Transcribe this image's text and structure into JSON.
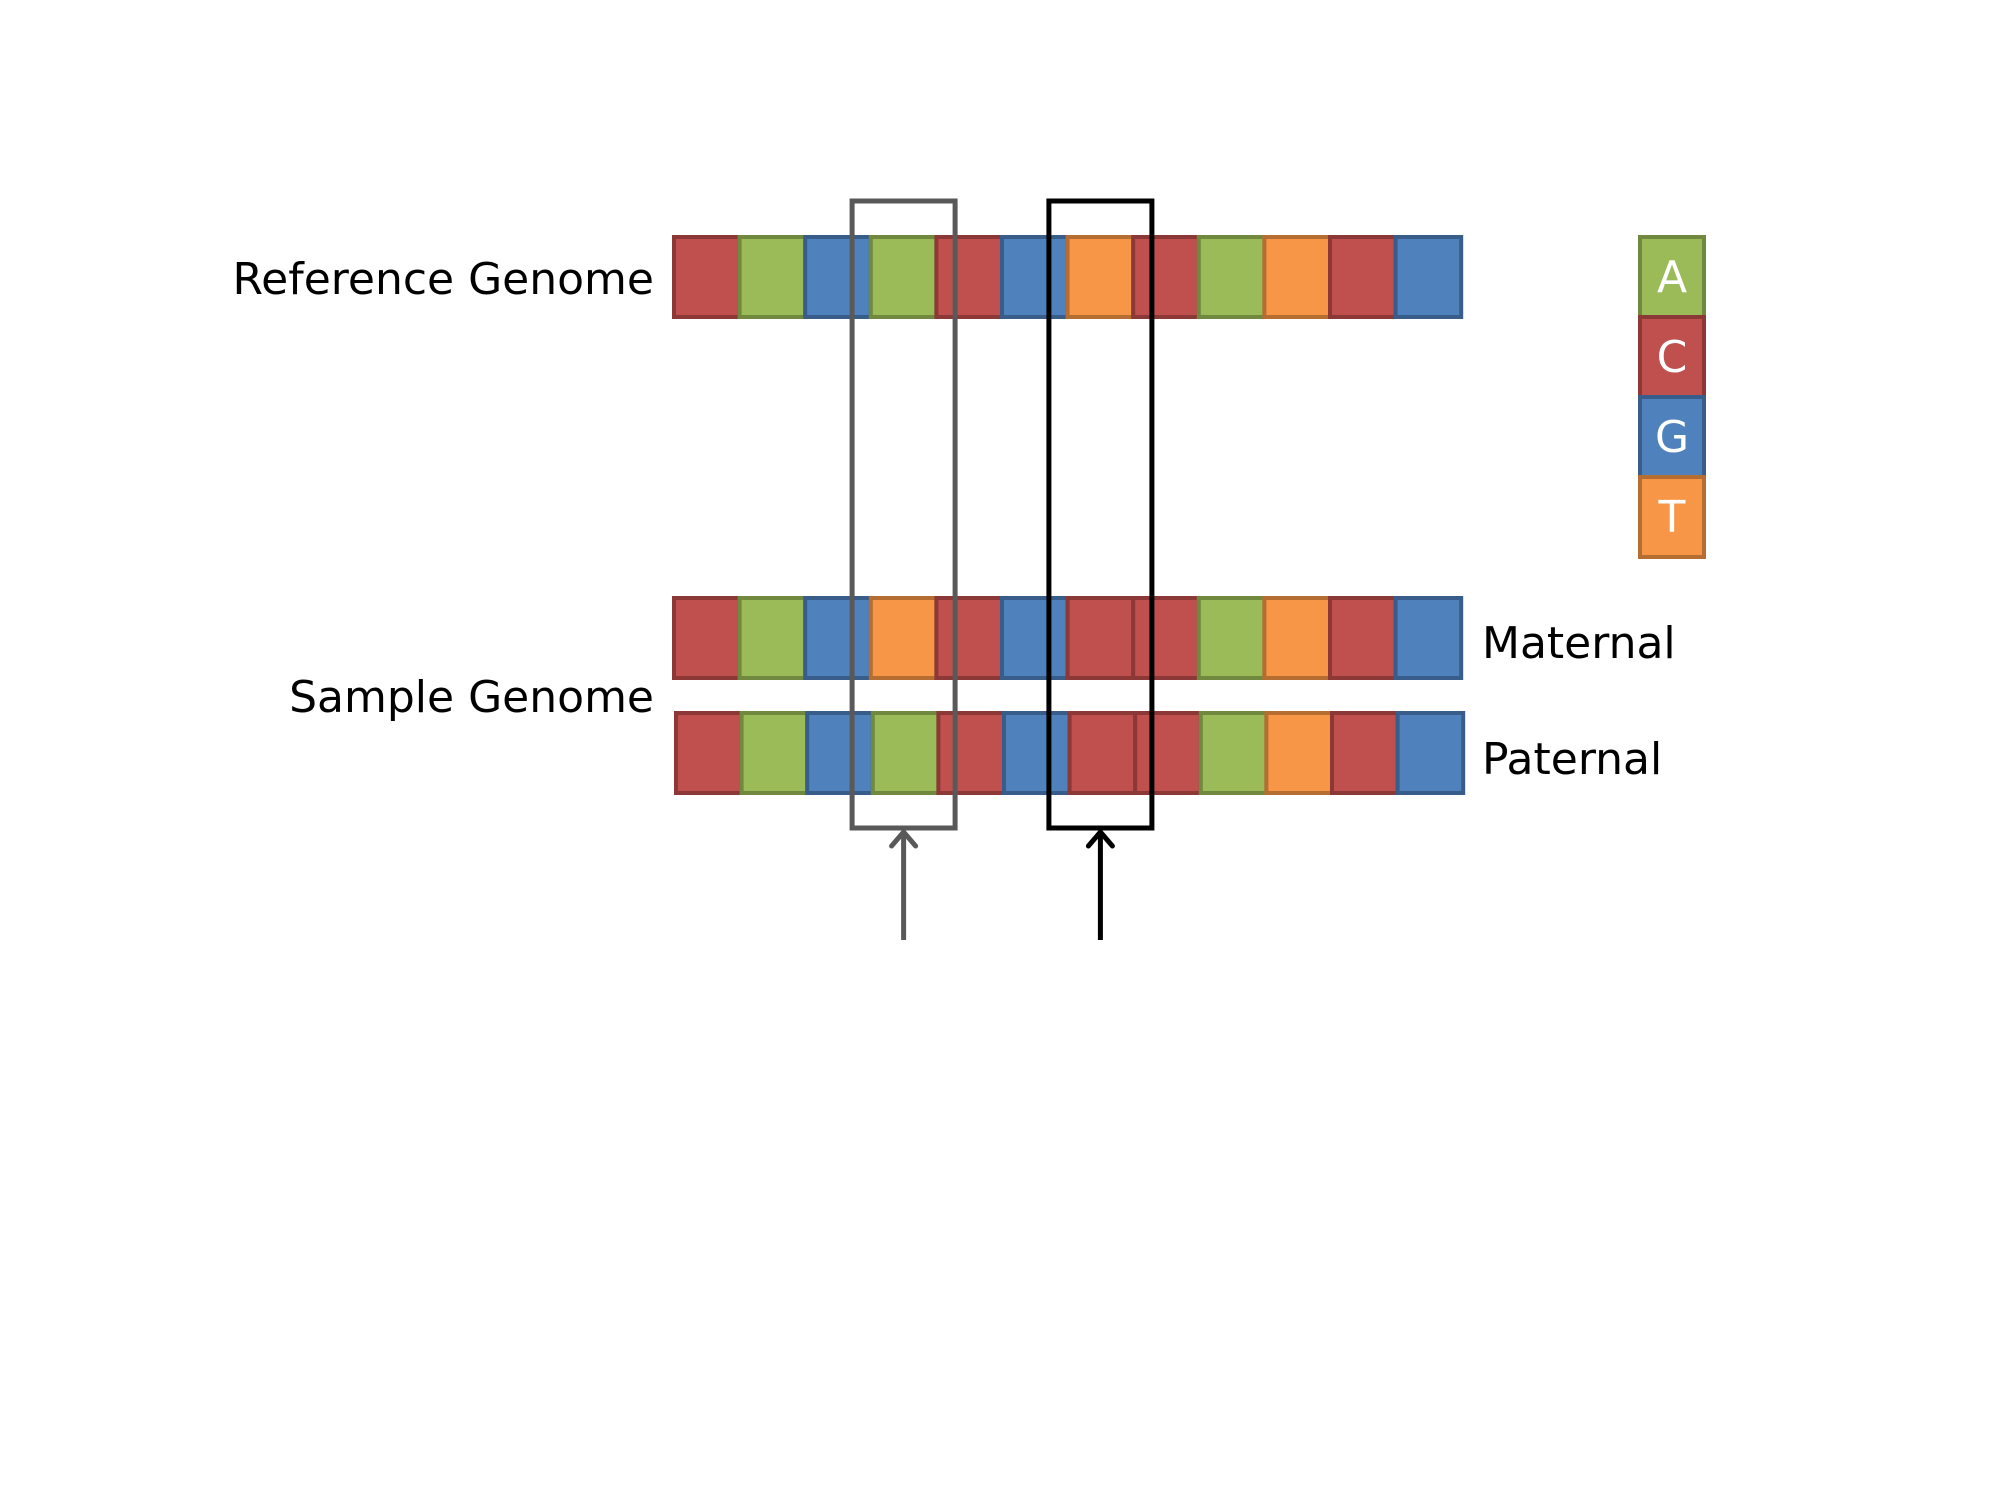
{
  "labels": {
    "reference": "Reference Genome",
    "sample": "Sample Genome",
    "maternal": "Maternal",
    "paternal": "Paternal"
  },
  "sequences": {
    "reference": [
      "C",
      "A",
      "G",
      "A",
      "C",
      "G",
      "T",
      "C",
      "A",
      "T",
      "C",
      "G"
    ],
    "maternal": [
      "C",
      "A",
      "G",
      "T",
      "C",
      "G",
      "C",
      "C",
      "A",
      "T",
      "C",
      "G"
    ],
    "paternal": [
      "C",
      "A",
      "G",
      "A",
      "C",
      "G",
      "C",
      "C",
      "A",
      "T",
      "C",
      "G"
    ]
  },
  "legend": [
    {
      "base": "A",
      "color": "#9bbb59"
    },
    {
      "base": "C",
      "color": "#c0504d"
    },
    {
      "base": "G",
      "color": "#4f81bd"
    },
    {
      "base": "T",
      "color": "#f79646"
    }
  ],
  "border_colors": {
    "A": "#71893f",
    "C": "#8c3836",
    "G": "#385d8a",
    "T": "#b66d31"
  },
  "highlights": [
    {
      "name": "heterozygous-variant-box",
      "column": 3,
      "color": "#595959"
    },
    {
      "name": "homozygous-variant-box",
      "column": 6,
      "color": "#000000"
    }
  ]
}
